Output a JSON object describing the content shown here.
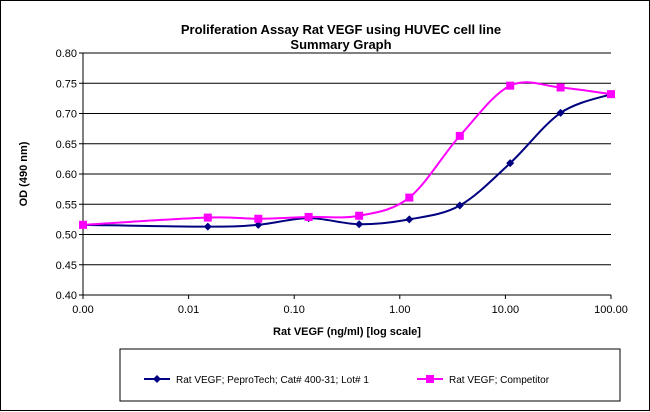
{
  "chart_data": {
    "type": "line",
    "title": "Proliferation Assay Rat VEGF using HUVEC cell line",
    "subtitle": "Summary Graph",
    "xlabel": "Rat VEGF (ng/ml) [log scale]",
    "ylabel": "OD (490 nm)",
    "xscale": "log",
    "xlim": [
      0.001,
      100
    ],
    "ylim": [
      0.4,
      0.8
    ],
    "xticks": [
      "0.00",
      "0.01",
      "0.10",
      "1.00",
      "10.00",
      "100.00"
    ],
    "yticks": [
      "0.40",
      "0.45",
      "0.50",
      "0.55",
      "0.60",
      "0.65",
      "0.70",
      "0.75",
      "0.80"
    ],
    "grid": "horizontal",
    "legend_position": "bottom",
    "x": [
      0.001,
      0.0152,
      0.0457,
      0.137,
      0.412,
      1.23,
      3.7,
      11.1,
      33.3,
      100
    ],
    "series": [
      {
        "name": "Rat VEGF; PeproTech; Cat# 400-31; Lot# 1",
        "color": "#000080",
        "marker": "diamond",
        "values": [
          0.516,
          0.513,
          0.516,
          0.527,
          0.517,
          0.525,
          0.548,
          0.618,
          0.701,
          0.732
        ]
      },
      {
        "name": "Rat VEGF; Competitor",
        "color": "#FF00FF",
        "marker": "square",
        "values": [
          0.516,
          0.528,
          0.526,
          0.529,
          0.531,
          0.561,
          0.663,
          0.746,
          0.743,
          0.732
        ]
      }
    ]
  }
}
